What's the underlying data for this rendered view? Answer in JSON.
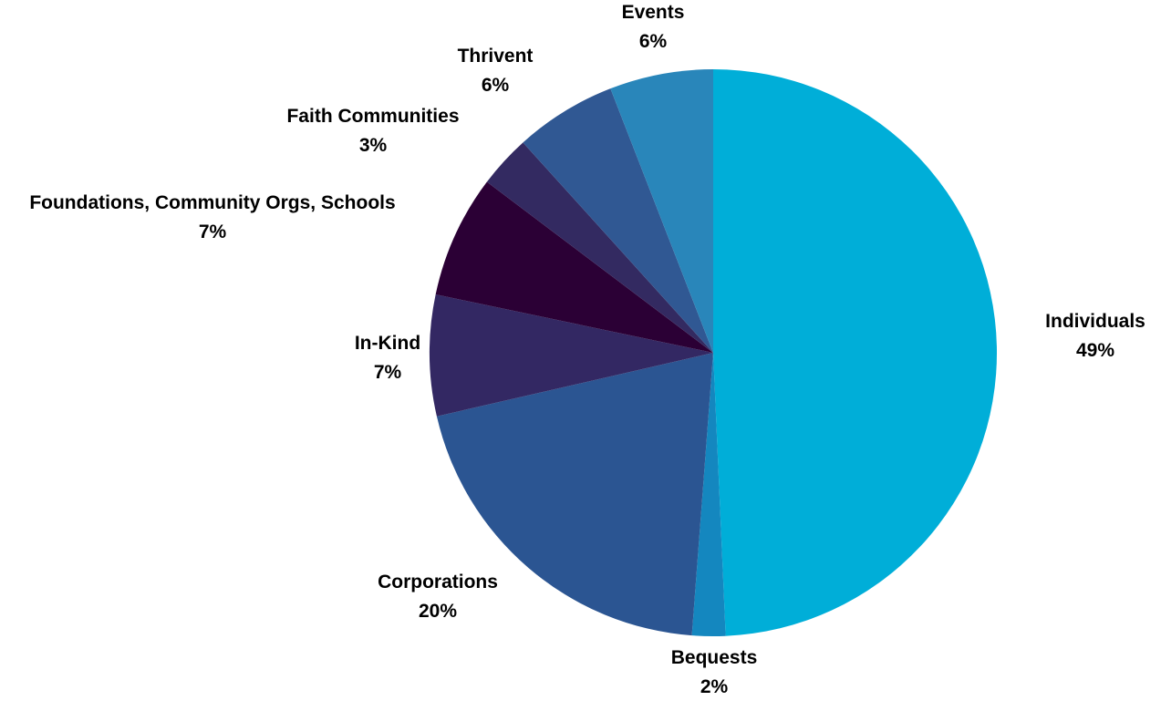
{
  "chart_data": {
    "type": "pie",
    "title": "",
    "start_angle_deg": 0,
    "direction": "clockwise",
    "slices": [
      {
        "label": "Individuals",
        "value_label": "49%",
        "value": 49.3,
        "color": "#00AED8"
      },
      {
        "label": "Bequests",
        "value_label": "2%",
        "value": 1.9,
        "color": "#1487BF"
      },
      {
        "label": "Corporations",
        "value_label": "20%",
        "value": 20.2,
        "color": "#2B5592"
      },
      {
        "label": "In-Kind",
        "value_label": "7%",
        "value": 6.9,
        "color": "#332863"
      },
      {
        "label": "Foundations, Community Orgs, Schools",
        "value_label": "7%",
        "value": 7.0,
        "color": "#2B0035"
      },
      {
        "label": "Faith Communities",
        "value_label": "3%",
        "value": 3.0,
        "color": "#332A61"
      },
      {
        "label": "Thrivent",
        "value_label": "6%",
        "value": 5.8,
        "color": "#305893"
      },
      {
        "label": "Events",
        "value_label": "6%",
        "value": 5.9,
        "color": "#2986BA"
      }
    ]
  }
}
